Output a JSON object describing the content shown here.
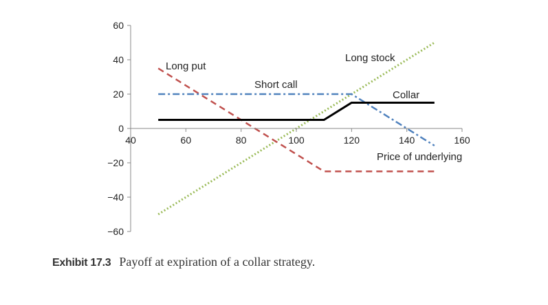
{
  "chart_data": {
    "type": "line",
    "xlim": [
      40,
      160
    ],
    "ylim": [
      -60,
      60
    ],
    "x_ticks": [
      40,
      60,
      80,
      100,
      120,
      140,
      160
    ],
    "y_ticks": [
      -60,
      -40,
      -20,
      0,
      20,
      40,
      60
    ],
    "x_tick_labels": [
      "40",
      "60",
      "80",
      "100",
      "120",
      "140",
      "160"
    ],
    "y_tick_labels": [
      "−60",
      "−40",
      "−20",
      "0",
      "20",
      "40",
      "60"
    ],
    "xlabel": "Price of underlying",
    "ylabel": "",
    "grid": false,
    "series": [
      {
        "name": "Long put",
        "color": "#c0504d",
        "style": "dashed",
        "x": [
          50,
          110,
          150
        ],
        "y": [
          35,
          -25,
          -25
        ]
      },
      {
        "name": "Short call",
        "color": "#4f81bd",
        "style": "dash-dot",
        "x": [
          50,
          120,
          150
        ],
        "y": [
          20,
          20,
          -10
        ]
      },
      {
        "name": "Long stock",
        "color": "#9bbb59",
        "style": "dotted",
        "x": [
          50,
          150
        ],
        "y": [
          -50,
          50
        ]
      },
      {
        "name": "Collar",
        "color": "#000000",
        "style": "solid",
        "x": [
          50,
          110,
          120,
          150
        ],
        "y": [
          5,
          5,
          15,
          15
        ]
      }
    ]
  },
  "caption": {
    "number": "Exhibit 17.3",
    "text": "Payoff at expiration of a collar strategy."
  }
}
